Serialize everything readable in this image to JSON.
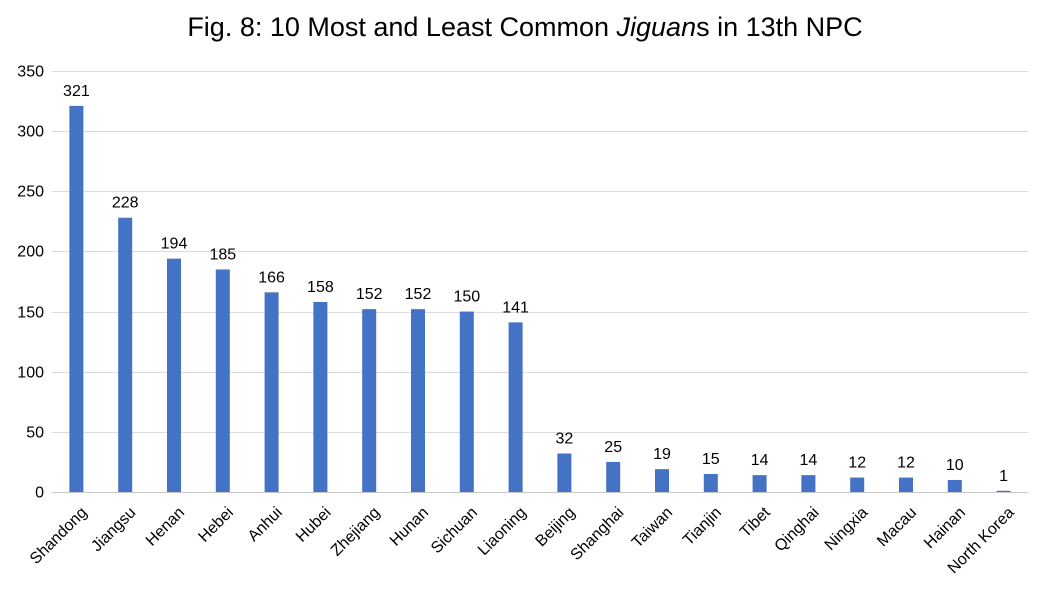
{
  "chart_data": {
    "type": "bar",
    "title": {
      "prefix": "Fig. 8: 10 Most and Least Common ",
      "italic": "Jiguan",
      "suffix": "s in 13th NPC"
    },
    "categories": [
      "Shandong",
      "Jiangsu",
      "Henan",
      "Hebei",
      "Anhui",
      "Hubei",
      "Zhejiang",
      "Hunan",
      "Sichuan",
      "Liaoning",
      "Beijing",
      "Shanghai",
      "Taiwan",
      "Tianjin",
      "Tibet",
      "Qinghai",
      "Ningxia",
      "Macau",
      "Hainan",
      "North Korea"
    ],
    "values": [
      321,
      228,
      194,
      185,
      166,
      158,
      152,
      152,
      150,
      141,
      32,
      25,
      19,
      15,
      14,
      14,
      12,
      12,
      10,
      1
    ],
    "ylim": [
      0,
      350
    ],
    "yticks": [
      0,
      50,
      100,
      150,
      200,
      250,
      300,
      350
    ],
    "xlabel": "",
    "ylabel": "",
    "grid": true,
    "legend": "none",
    "bar_color": "#4472C4",
    "data_labels": true
  }
}
